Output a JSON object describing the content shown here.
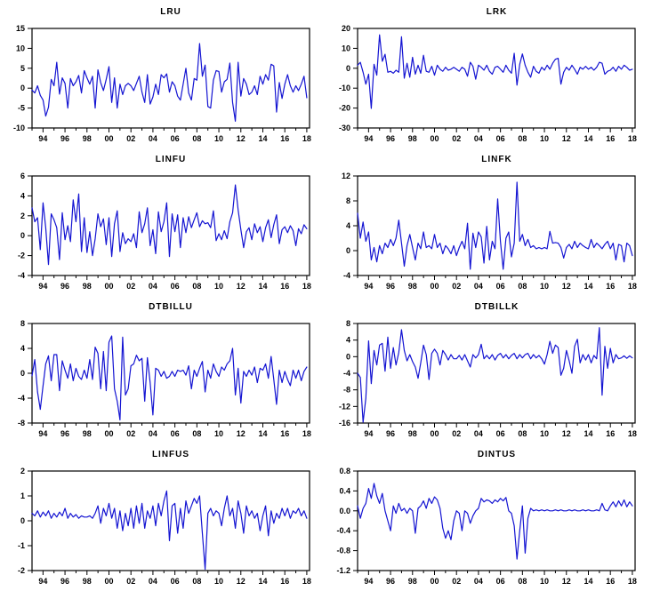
{
  "style": {
    "line_color": "#1414d2",
    "axis_color": "#000000",
    "text_color": "#000000",
    "background": "#ffffff"
  },
  "x_axis": {
    "domain": [
      1993,
      2018.25
    ],
    "tick_labels": [
      "94",
      "96",
      "98",
      "00",
      "02",
      "04",
      "06",
      "08",
      "10",
      "12",
      "14",
      "16",
      "18"
    ],
    "tick_years": [
      1994,
      1996,
      1998,
      2000,
      2002,
      2004,
      2006,
      2008,
      2010,
      2012,
      2014,
      2016,
      2018
    ],
    "minor_years": [
      1993,
      1995,
      1997,
      1999,
      2001,
      2003,
      2005,
      2007,
      2009,
      2011,
      2013,
      2015,
      2017
    ]
  },
  "chart_data": [
    {
      "type": "line",
      "title": "LRU",
      "ylim": [
        -10,
        15
      ],
      "yticks": [
        "15",
        "10",
        "5",
        "0",
        "-5",
        "-10"
      ],
      "x_start": 1993,
      "x_step": 0.25,
      "values": [
        -0.5,
        -1.2,
        0.6,
        -1.8,
        -3.0,
        -7.0,
        -4.8,
        2.2,
        0.6,
        6.5,
        -1.5,
        2.6,
        1.2,
        -5.0,
        2.4,
        0.6,
        1.6,
        3.2,
        -1.2,
        4.4,
        2.6,
        1.0,
        3.0,
        -5.0,
        4.6,
        1.4,
        -0.6,
        2.2,
        5.4,
        -3.6,
        2.6,
        -5.0,
        1.0,
        -1.6,
        0.6,
        1.2,
        0.6,
        -0.6,
        1.2,
        3.0,
        -1.0,
        -3.6,
        3.4,
        -4.0,
        -2.2,
        1.0,
        -1.6,
        3.4,
        2.6,
        3.6,
        -1.0,
        1.6,
        0.6,
        -2.0,
        -3.0,
        1.0,
        5.0,
        -1.2,
        -3.0,
        2.4,
        2.0,
        11.2,
        3.0,
        5.8,
        -4.6,
        -5.0,
        2.0,
        4.4,
        4.2,
        -1.0,
        1.6,
        2.2,
        6.3,
        -3.6,
        -8.3,
        6.5,
        -2.0,
        2.4,
        1.0,
        -1.6,
        -1.0,
        0.6,
        -1.6,
        3.0,
        1.0,
        3.4,
        2.0,
        6.0,
        5.6,
        -6.0,
        1.4,
        -2.6,
        1.0,
        3.4,
        0.6,
        -1.0,
        0.6,
        -0.6,
        1.0,
        3.0,
        -2.4
      ]
    },
    {
      "type": "line",
      "title": "LRK",
      "ylim": [
        -30,
        20
      ],
      "yticks": [
        "20",
        "10",
        "0",
        "-10",
        "-20",
        "-30"
      ],
      "x_start": 1993,
      "x_step": 0.25,
      "values": [
        1.5,
        3.0,
        -2.0,
        -8.0,
        -3.0,
        -20.2,
        2.0,
        -3.5,
        16.8,
        3.5,
        7.0,
        -2.0,
        -1.5,
        -2.5,
        -1.0,
        -2.0,
        15.8,
        -5.0,
        2.5,
        -4.5,
        5.5,
        -3.0,
        1.5,
        -2.5,
        6.5,
        -1.5,
        -2.0,
        1.0,
        -3.5,
        1.5,
        -0.5,
        -1.5,
        0.5,
        -1.0,
        -0.5,
        0.5,
        -0.5,
        -1.5,
        0.5,
        -0.5,
        -4.0,
        3.0,
        1.0,
        -5.5,
        1.5,
        0.5,
        -1.0,
        1.5,
        -1.5,
        -3.0,
        0.5,
        1.0,
        -0.5,
        -2.0,
        1.5,
        -1.0,
        -2.5,
        7.5,
        -8.5,
        2.0,
        7.2,
        1.5,
        -2.0,
        -4.5,
        1.0,
        -1.5,
        -2.5,
        0.5,
        -1.0,
        1.5,
        -0.5,
        2.5,
        4.5,
        5.0,
        -8.0,
        -2.0,
        0.5,
        -1.0,
        1.5,
        -0.5,
        -3.0,
        0.5,
        -0.5,
        1.0,
        -0.5,
        0.5,
        -1.0,
        0.5,
        3.0,
        2.5,
        -3.0,
        -1.5,
        -1.0,
        0.5,
        -1.5,
        1.0,
        -0.5,
        1.5,
        0.5,
        -1.0,
        -0.5
      ]
    },
    {
      "type": "line",
      "title": "LINFU",
      "ylim": [
        -4,
        6
      ],
      "yticks": [
        "6",
        "4",
        "2",
        "0",
        "-2",
        "-4"
      ],
      "x_start": 1993,
      "x_step": 0.25,
      "values": [
        2.8,
        1.4,
        1.8,
        -1.4,
        3.3,
        0.8,
        -2.9,
        2.2,
        1.6,
        0.8,
        -2.4,
        2.3,
        -0.4,
        1.0,
        -0.6,
        3.6,
        1.4,
        4.2,
        -1.6,
        1.8,
        -1.7,
        0.4,
        -2.0,
        -0.3,
        2.2,
        0.9,
        1.7,
        -0.9,
        1.8,
        -2.1,
        1.2,
        2.5,
        -1.6,
        0.3,
        -0.8,
        -0.3,
        -0.6,
        0.2,
        -1.2,
        2.4,
        0.3,
        1.2,
        2.8,
        -1.0,
        0.6,
        -1.8,
        2.4,
        0.4,
        1.4,
        3.3,
        -2.1,
        2.2,
        0.4,
        2.1,
        -1.2,
        1.8,
        0.3,
        1.9,
        0.8,
        1.6,
        2.3,
        0.9,
        1.5,
        1.2,
        1.3,
        0.8,
        2.5,
        -0.5,
        0.2,
        -0.4,
        0.5,
        -0.3,
        1.4,
        2.3,
        5.1,
        2.6,
        0.6,
        -1.2,
        0.4,
        0.8,
        -0.4,
        1.2,
        0.3,
        0.9,
        -0.6,
        0.8,
        1.6,
        -0.2,
        1.1,
        2.1,
        -0.8,
        0.6,
        0.9,
        0.3,
        1.0,
        0.5,
        -1.0,
        0.7,
        0.2,
        1.1,
        0.7
      ]
    },
    {
      "type": "line",
      "title": "LINFK",
      "ylim": [
        -4,
        12
      ],
      "yticks": [
        "12",
        "8",
        "4",
        "0",
        "-4"
      ],
      "x_start": 1993,
      "x_step": 0.25,
      "values": [
        6.0,
        2.0,
        4.6,
        1.5,
        3.0,
        -1.5,
        0.5,
        -1.8,
        0.8,
        -0.5,
        1.2,
        0.5,
        1.8,
        0.8,
        2.0,
        4.9,
        1.2,
        -2.5,
        0.8,
        2.6,
        0.5,
        -1.5,
        1.2,
        0.3,
        3.0,
        0.5,
        0.8,
        0.3,
        2.6,
        0.5,
        1.2,
        -0.5,
        0.8,
        0.3,
        -0.5,
        0.8,
        -0.8,
        0.5,
        1.5,
        0.3,
        4.4,
        -3.0,
        2.8,
        0.5,
        3.0,
        2.2,
        -2.0,
        3.9,
        -1.5,
        1.5,
        0.3,
        8.3,
        1.5,
        -3.0,
        2.0,
        3.0,
        -1.0,
        1.2,
        11.0,
        1.5,
        2.6,
        0.8,
        1.8,
        0.5,
        0.8,
        0.3,
        0.5,
        0.3,
        0.5,
        0.3,
        3.1,
        1.2,
        1.3,
        1.2,
        0.5,
        -1.2,
        0.5,
        1.0,
        0.3,
        1.5,
        0.5,
        1.2,
        0.8,
        0.5,
        0.3,
        1.8,
        0.5,
        1.2,
        0.8,
        0.3,
        1.0,
        1.5,
        0.3,
        1.2,
        -1.5,
        1.0,
        0.8,
        -1.8,
        1.2,
        0.8,
        -0.8
      ]
    },
    {
      "type": "line",
      "title": "DTBILLU",
      "ylim": [
        -8,
        8
      ],
      "yticks": [
        "8",
        "4",
        "0",
        "-4",
        "-8"
      ],
      "x_start": 1993,
      "x_step": 0.25,
      "values": [
        -0.4,
        2.2,
        -3.0,
        -5.8,
        -2.0,
        1.5,
        2.8,
        -1.2,
        3.0,
        3.0,
        -2.8,
        2.0,
        0.5,
        -0.8,
        1.5,
        -1.2,
        0.8,
        -0.5,
        -1.0,
        0.5,
        -0.8,
        2.2,
        -1.0,
        4.2,
        3.2,
        -2.5,
        3.5,
        -2.8,
        5.0,
        6.0,
        -2.5,
        -4.5,
        -7.5,
        5.8,
        -3.5,
        -2.5,
        1.2,
        1.5,
        2.9,
        2.0,
        2.4,
        -4.5,
        2.5,
        -1.5,
        -6.7,
        0.8,
        0.5,
        -0.5,
        0.3,
        -0.8,
        -0.5,
        0.3,
        -0.5,
        0.5,
        0.3,
        0.5,
        -0.3,
        1.2,
        -2.5,
        0.5,
        -0.5,
        0.8,
        1.9,
        -3.0,
        0.5,
        -0.8,
        1.5,
        0.3,
        -0.5,
        1.0,
        0.5,
        1.5,
        2.0,
        4.0,
        -3.5,
        0.8,
        -4.8,
        0.3,
        -0.5,
        0.5,
        -0.3,
        1.0,
        -1.5,
        0.8,
        0.5,
        1.5,
        -0.8,
        2.7,
        -1.0,
        -5.0,
        0.5,
        -1.5,
        0.3,
        -1.0,
        -2.0,
        0.5,
        -0.8,
        0.5,
        -1.2,
        0.3,
        1.0
      ]
    },
    {
      "type": "line",
      "title": "DTBILLK",
      "ylim": [
        -16,
        8
      ],
      "yticks": [
        "8",
        "4",
        "0",
        "-4",
        "-8",
        "-12",
        "-16"
      ],
      "x_start": 1993,
      "x_step": 0.25,
      "values": [
        -4.0,
        -5.0,
        -15.8,
        -10.0,
        3.8,
        -6.5,
        1.5,
        -2.0,
        2.8,
        3.2,
        -3.5,
        4.7,
        -2.8,
        2.2,
        -2.0,
        1.0,
        6.5,
        1.5,
        -1.0,
        0.5,
        -1.2,
        -2.5,
        -5.2,
        -1.5,
        2.8,
        0.5,
        -5.5,
        0.8,
        1.8,
        0.8,
        -2.0,
        1.5,
        0.5,
        -0.8,
        0.5,
        -0.5,
        -0.5,
        0.3,
        -0.8,
        0.5,
        -1.0,
        -2.5,
        0.5,
        -0.3,
        0.5,
        3.0,
        -0.5,
        0.3,
        -0.5,
        0.5,
        -0.8,
        0.3,
        0.8,
        -0.3,
        0.5,
        -0.5,
        0.3,
        0.8,
        -0.5,
        0.5,
        -0.3,
        0.5,
        0.8,
        -0.5,
        0.5,
        -0.3,
        0.3,
        -0.5,
        -1.8,
        0.5,
        3.7,
        0.8,
        2.8,
        2.2,
        -4.5,
        -2.8,
        1.5,
        -1.0,
        -4.0,
        2.5,
        4.2,
        -1.5,
        0.5,
        -0.8,
        0.5,
        -1.5,
        0.3,
        -0.5,
        7.0,
        -9.3,
        2.5,
        -2.8,
        2.0,
        -1.5,
        0.5,
        -0.5,
        -0.3,
        0.2,
        -0.4,
        0.2,
        -0.3
      ]
    },
    {
      "type": "line",
      "title": "LINFUS",
      "ylim": [
        -2,
        2
      ],
      "yticks": [
        "2",
        "1",
        "0",
        "-1",
        "-2"
      ],
      "x_start": 1993,
      "x_step": 0.25,
      "values": [
        0.3,
        0.2,
        0.4,
        0.15,
        0.35,
        0.2,
        0.4,
        0.1,
        0.3,
        0.15,
        0.35,
        0.2,
        0.5,
        0.1,
        0.3,
        0.15,
        0.25,
        0.1,
        0.2,
        0.15,
        0.15,
        0.2,
        0.1,
        0.3,
        0.6,
        -0.1,
        0.5,
        0.2,
        0.7,
        0.1,
        0.5,
        -0.3,
        0.4,
        -0.4,
        0.3,
        -0.2,
        0.5,
        -0.3,
        0.6,
        -0.1,
        0.7,
        -0.3,
        0.4,
        0.1,
        0.6,
        -0.2,
        0.7,
        0.2,
        0.8,
        1.2,
        -0.8,
        0.6,
        0.7,
        -0.5,
        0.5,
        -0.3,
        0.8,
        0.3,
        0.6,
        0.9,
        0.7,
        1.0,
        -0.5,
        -1.95,
        0.3,
        0.5,
        0.2,
        0.4,
        0.3,
        -0.2,
        0.5,
        1.0,
        0.2,
        0.5,
        -0.3,
        0.8,
        0.3,
        -0.5,
        0.6,
        0.2,
        0.4,
        0.1,
        0.3,
        -0.4,
        0.2,
        0.6,
        -0.6,
        0.4,
        -0.1,
        0.3,
        0.1,
        0.5,
        0.2,
        0.5,
        0.1,
        0.4,
        0.3,
        0.5,
        0.2,
        0.4,
        0.1
      ]
    },
    {
      "type": "line",
      "title": "DINTUS",
      "ylim": [
        -1.2,
        0.8
      ],
      "yticks": [
        "0.8",
        "0.4",
        "0.0",
        "-0.4",
        "-0.8",
        "-1.2"
      ],
      "x_start": 1993,
      "x_step": 0.25,
      "values": [
        0.1,
        -0.15,
        0.05,
        0.15,
        0.45,
        0.25,
        0.55,
        0.3,
        0.15,
        0.35,
        0.0,
        -0.2,
        -0.4,
        0.1,
        -0.05,
        0.15,
        0.0,
        0.05,
        -0.05,
        0.05,
        0.0,
        -0.45,
        0.05,
        0.1,
        0.2,
        0.05,
        0.25,
        0.15,
        0.28,
        0.22,
        0.05,
        -0.35,
        -0.55,
        -0.4,
        -0.58,
        -0.2,
        0.0,
        -0.05,
        -0.4,
        0.0,
        -0.05,
        -0.25,
        -0.1,
        0.0,
        0.05,
        0.25,
        0.18,
        0.22,
        0.2,
        0.15,
        0.22,
        0.18,
        0.25,
        0.2,
        0.27,
        0.0,
        -0.05,
        -0.3,
        -0.97,
        -0.4,
        0.1,
        -0.85,
        -0.15,
        0.05,
        0.0,
        0.02,
        0.0,
        0.02,
        0.0,
        0.02,
        0.0,
        0.0,
        0.02,
        0.0,
        0.02,
        0.0,
        0.0,
        0.02,
        0.0,
        0.02,
        0.0,
        0.0,
        0.02,
        0.0,
        0.02,
        0.0,
        0.0,
        0.02,
        0.0,
        0.15,
        0.02,
        0.0,
        0.1,
        0.18,
        0.08,
        0.2,
        0.1,
        0.22,
        0.08,
        0.18,
        0.1
      ]
    }
  ]
}
